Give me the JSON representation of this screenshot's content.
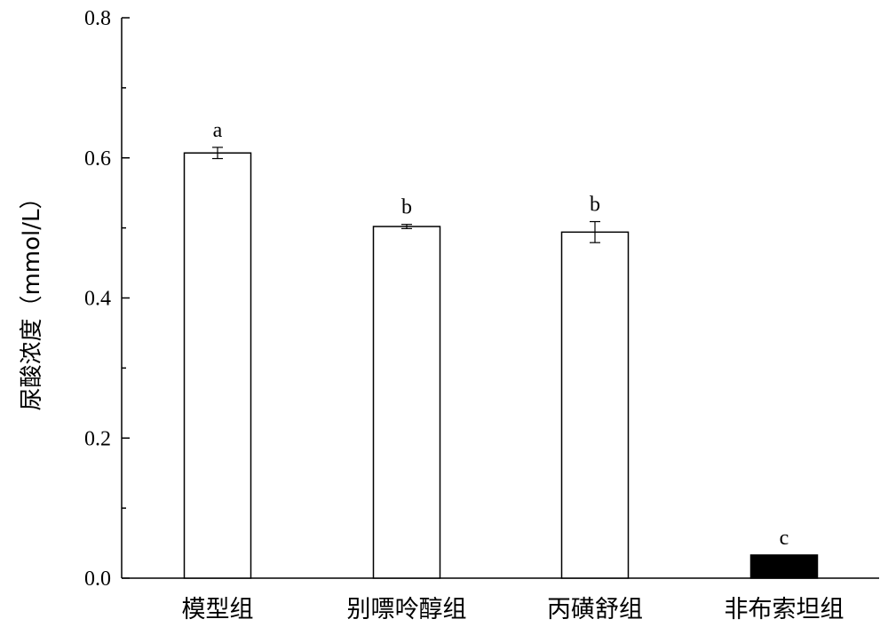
{
  "chart_data": {
    "type": "bar",
    "ylabel": "尿酸浓度（mmol/L）",
    "xlabel": "",
    "ylim": [
      0,
      0.8
    ],
    "y_ticks": [
      "0.0",
      "0.2",
      "0.4",
      "0.6",
      "0.8"
    ],
    "y_tick_values": [
      0,
      0.2,
      0.4,
      0.6,
      0.8
    ],
    "categories": [
      "模型组",
      "别嘌呤醇组",
      "丙磺舒组",
      "非布索坦组"
    ],
    "values": [
      0.607,
      0.502,
      0.494,
      0.033
    ],
    "errors": [
      0.008,
      0.003,
      0.015,
      0
    ],
    "significance": [
      "a",
      "b",
      "b",
      "c"
    ],
    "bar_fills": [
      "#ffffff",
      "#ffffff",
      "#ffffff",
      "#000000"
    ],
    "grid": false
  }
}
